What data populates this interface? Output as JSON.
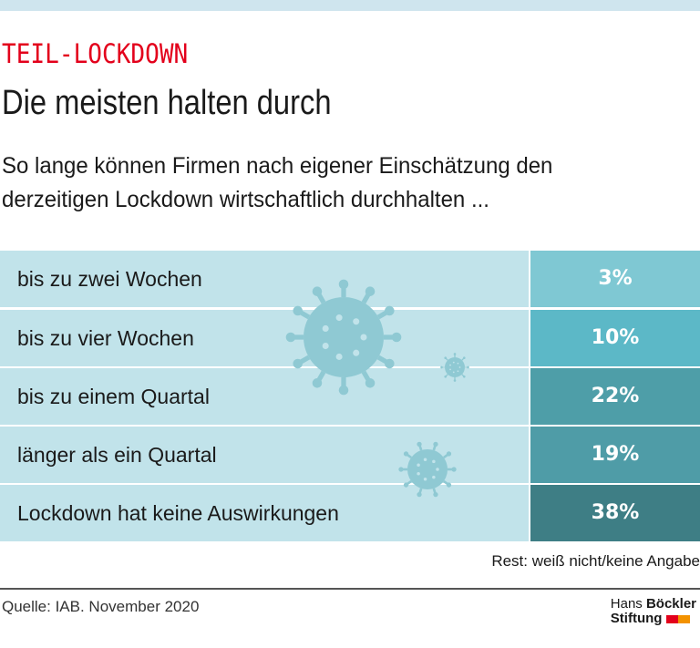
{
  "header": {
    "kicker": "TEIL-LOCKDOWN",
    "title": "Die meisten halten durch",
    "subtitle_line1": "So lange können Firmen nach eigener Einschätzung den",
    "subtitle_line2": "derzeitigen Lockdown wirtschaftlich durchhalten ..."
  },
  "chart_data": {
    "type": "table",
    "categories": [
      "bis zu zwei Wochen",
      "bis zu vier Wochen",
      "bis zu einem Quartal",
      "länger als ein Quartal",
      "Lockdown hat keine Auswirkungen"
    ],
    "values": [
      3,
      10,
      22,
      19,
      38
    ],
    "value_labels": [
      "3%",
      "10%",
      "22%",
      "19%",
      "38%"
    ],
    "colors": [
      "#7fc8d3",
      "#5cb8c7",
      "#4e9ea8",
      "#4f9ca7",
      "#3e7e85"
    ],
    "note": "Rest: weiß nicht/keine Angabe"
  },
  "footer": {
    "source": "Quelle: IAB. November 2020",
    "logo_line1a": "Hans ",
    "logo_line1b": "Böckler",
    "logo_line2": "Stiftung",
    "logo_colors": [
      "#e3001b",
      "#f39200"
    ]
  }
}
